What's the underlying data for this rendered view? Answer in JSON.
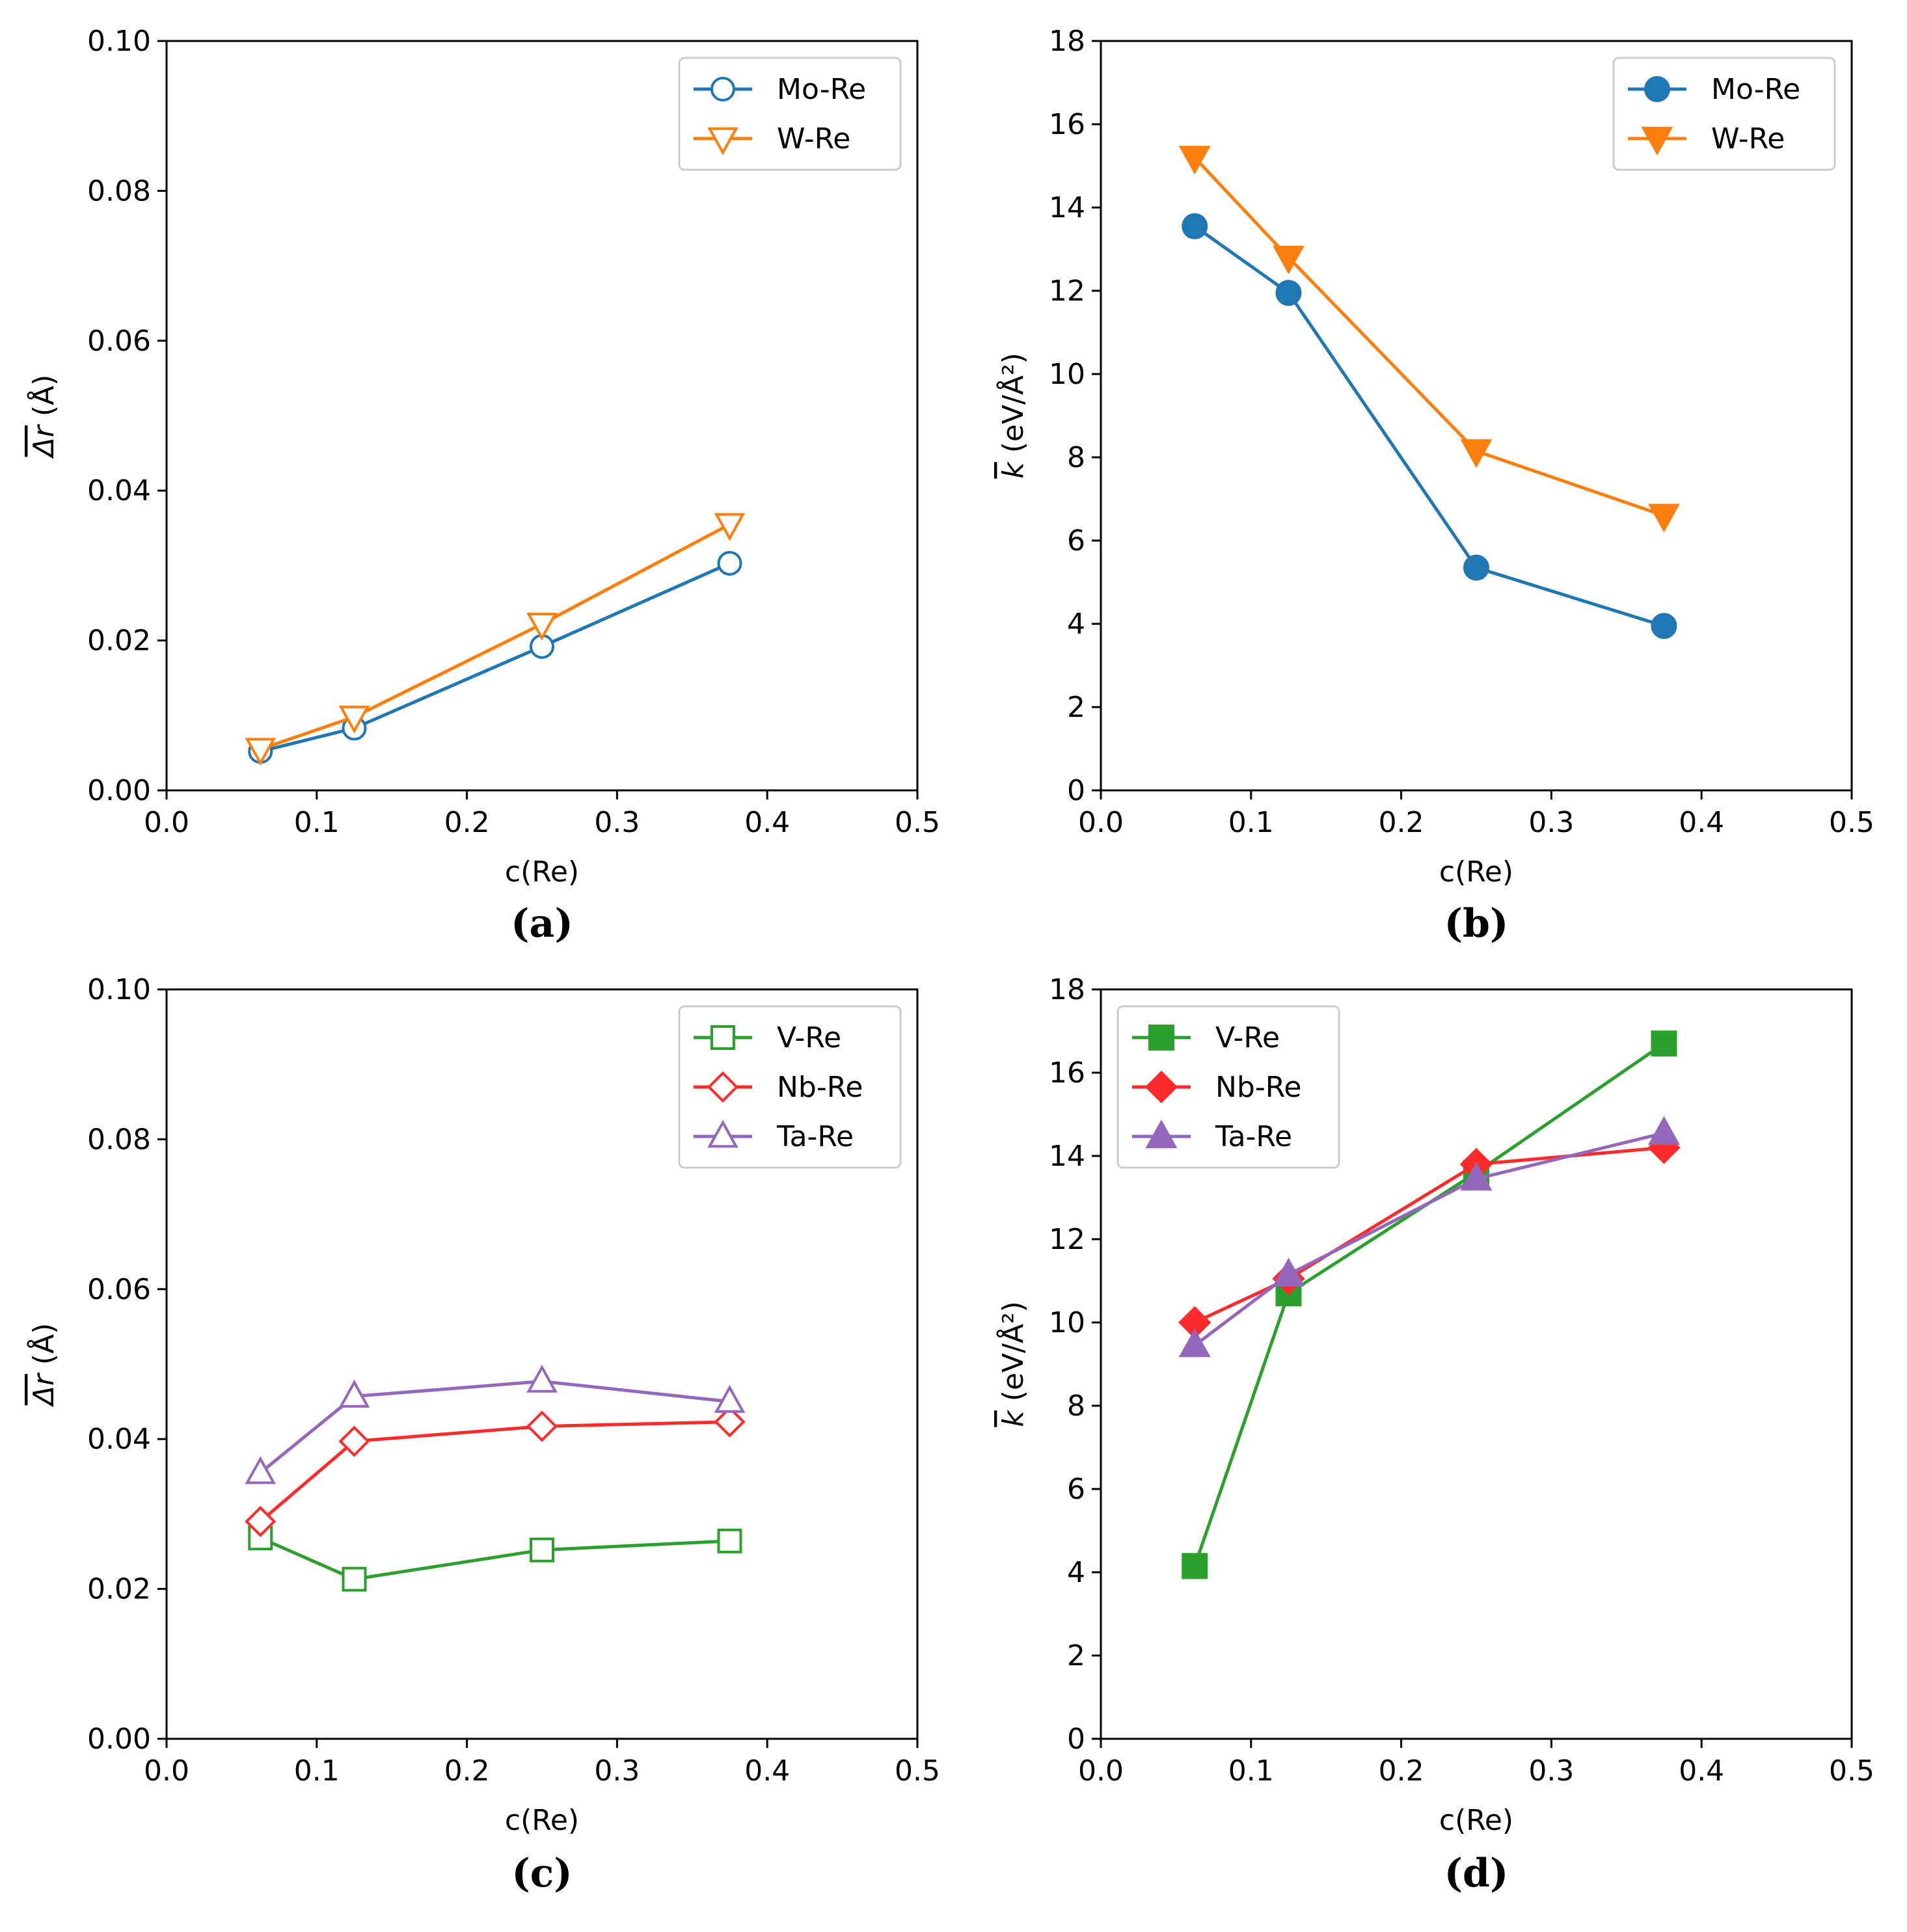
{
  "colors": {
    "blue": "#1f77b4",
    "orange": "#ff7f0e",
    "green": "#2ca02c",
    "red": "#ff2a2a",
    "purple": "#9467bd",
    "legend_border": "#cccccc"
  },
  "chart_data": [
    {
      "type": "line",
      "panel_label": "(a)",
      "xlabel": "c(Re)",
      "ylabel": "Δr (Å)",
      "xlim": [
        0.0,
        0.5
      ],
      "ylim": [
        0.0,
        0.1
      ],
      "xticks": [
        "0.0",
        "0.1",
        "0.2",
        "0.3",
        "0.4",
        "0.5"
      ],
      "yticks": [
        "0.00",
        "0.02",
        "0.04",
        "0.06",
        "0.08",
        "0.10"
      ],
      "legend_position": "top-right",
      "marker_fill": "hollow",
      "x": [
        0.0625,
        0.125,
        0.25,
        0.375
      ],
      "series": [
        {
          "name": "Mo-Re",
          "color": "blue",
          "marker": "circle",
          "values": [
            0.0052,
            0.0083,
            0.0192,
            0.0303
          ]
        },
        {
          "name": "W-Re",
          "color": "orange",
          "marker": "triangle-down",
          "values": [
            0.0055,
            0.0098,
            0.0222,
            0.0355
          ]
        }
      ]
    },
    {
      "type": "line",
      "panel_label": "(b)",
      "xlabel": "c(Re)",
      "ylabel": "k (eV/Å²)",
      "xlim": [
        0.0,
        0.5
      ],
      "ylim": [
        0,
        18
      ],
      "xticks": [
        "0.0",
        "0.1",
        "0.2",
        "0.3",
        "0.4",
        "0.5"
      ],
      "yticks": [
        "0",
        "2",
        "4",
        "6",
        "8",
        "10",
        "12",
        "14",
        "16",
        "18"
      ],
      "legend_position": "top-right",
      "marker_fill": "filled",
      "x": [
        0.0625,
        0.125,
        0.25,
        0.375
      ],
      "series": [
        {
          "name": "Mo-Re",
          "color": "blue",
          "marker": "circle",
          "values": [
            13.55,
            11.95,
            5.35,
            3.95
          ]
        },
        {
          "name": "W-Re",
          "color": "orange",
          "marker": "triangle-down",
          "values": [
            15.2,
            12.8,
            8.15,
            6.6
          ]
        }
      ]
    },
    {
      "type": "line",
      "panel_label": "(c)",
      "xlabel": "c(Re)",
      "ylabel": "Δr (Å)",
      "xlim": [
        0.0,
        0.5
      ],
      "ylim": [
        0.0,
        0.1
      ],
      "xticks": [
        "0.0",
        "0.1",
        "0.2",
        "0.3",
        "0.4",
        "0.5"
      ],
      "yticks": [
        "0.00",
        "0.02",
        "0.04",
        "0.06",
        "0.08",
        "0.10"
      ],
      "legend_position": "top-right",
      "marker_fill": "hollow",
      "x": [
        0.0625,
        0.125,
        0.25,
        0.375
      ],
      "series": [
        {
          "name": "V-Re",
          "color": "green",
          "marker": "square",
          "values": [
            0.0268,
            0.0213,
            0.0252,
            0.0264
          ]
        },
        {
          "name": "Nb-Re",
          "color": "red",
          "marker": "diamond",
          "values": [
            0.029,
            0.0397,
            0.0417,
            0.0423
          ]
        },
        {
          "name": "Ta-Re",
          "color": "purple",
          "marker": "triangle-up",
          "values": [
            0.0355,
            0.0457,
            0.0477,
            0.045
          ]
        }
      ]
    },
    {
      "type": "line",
      "panel_label": "(d)",
      "xlabel": "c(Re)",
      "ylabel": "k (eV/Å²)",
      "xlim": [
        0.0,
        0.5
      ],
      "ylim": [
        0,
        18
      ],
      "xticks": [
        "0.0",
        "0.1",
        "0.2",
        "0.3",
        "0.4",
        "0.5"
      ],
      "yticks": [
        "0",
        "2",
        "4",
        "6",
        "8",
        "10",
        "12",
        "14",
        "16",
        "18"
      ],
      "legend_position": "top-left",
      "marker_fill": "filled",
      "x": [
        0.0625,
        0.125,
        0.25,
        0.375
      ],
      "series": [
        {
          "name": "V-Re",
          "color": "green",
          "marker": "square",
          "values": [
            4.15,
            10.7,
            13.6,
            16.7
          ]
        },
        {
          "name": "Nb-Re",
          "color": "red",
          "marker": "diamond",
          "values": [
            10.0,
            11.05,
            13.8,
            14.2
          ]
        },
        {
          "name": "Ta-Re",
          "color": "purple",
          "marker": "triangle-up",
          "values": [
            9.45,
            11.15,
            13.45,
            14.55
          ]
        }
      ]
    }
  ]
}
